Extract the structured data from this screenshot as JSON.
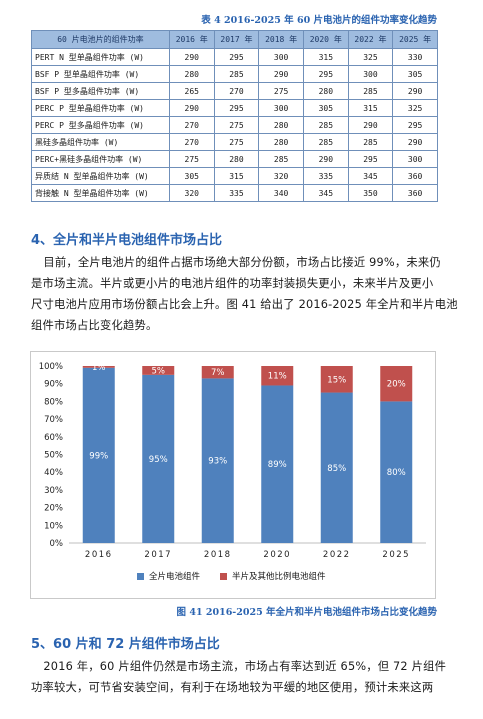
{
  "table": {
    "caption": "表 4 2016-2025 年 60 片电池片的组件功率变化趋势",
    "header": [
      "60 片电池片的组件功率",
      "2016 年",
      "2017 年",
      "2018 年",
      "2020 年",
      "2022 年",
      "2025 年"
    ],
    "rows": [
      [
        "PERT N 型单晶组件功率 (W)",
        "290",
        "295",
        "300",
        "315",
        "325",
        "330"
      ],
      [
        "BSF P 型单晶组件功率 (W)",
        "280",
        "285",
        "290",
        "295",
        "300",
        "305"
      ],
      [
        "BSF P 型多晶组件功率 (W)",
        "265",
        "270",
        "275",
        "280",
        "285",
        "290"
      ],
      [
        "PERC P 型单晶组件功率 (W)",
        "290",
        "295",
        "300",
        "305",
        "315",
        "325"
      ],
      [
        "PERC P 型多晶组件功率 (W)",
        "270",
        "275",
        "280",
        "285",
        "290",
        "295"
      ],
      [
        "黑硅多晶组件功率 (W)",
        "270",
        "275",
        "280",
        "285",
        "285",
        "290"
      ],
      [
        "PERC+黑硅多晶组件功率 (W)",
        "275",
        "280",
        "285",
        "290",
        "295",
        "300"
      ],
      [
        "异质结 N 型单晶组件功率 (W)",
        "305",
        "315",
        "320",
        "335",
        "345",
        "360"
      ],
      [
        "背接触 N 型单晶组件功率 (W)",
        "320",
        "335",
        "340",
        "345",
        "350",
        "360"
      ]
    ]
  },
  "section4": {
    "heading": "4、全片和半片电池组件市场占比",
    "lines": [
      "目前，全片电池片的组件占据市场绝大部分份额，市场占比接近 99%，未来仍",
      "是市场主流。半片或更小片的电池片组件的功率封装损失更小，未来半片及更小",
      "尺寸电池片应用市场份额占比会上升。图 41 给出了 2016-2025 年全片和半片电池",
      "组件市场占比变化趋势。"
    ]
  },
  "chart_data": {
    "type": "bar",
    "stacked": true,
    "categories": [
      "2016",
      "2017",
      "2018",
      "2020",
      "2022",
      "2025"
    ],
    "series": [
      {
        "name": "全片电池组件",
        "values": [
          99,
          95,
          93,
          89,
          85,
          80
        ],
        "labels": [
          "99%",
          "95%",
          "93%",
          "89%",
          "85%",
          "80%"
        ],
        "color": "#4f81bd"
      },
      {
        "name": "半片及其他比例电池组件",
        "values": [
          1,
          5,
          7,
          11,
          15,
          20
        ],
        "labels": [
          "1%",
          "5%",
          "7%",
          "11%",
          "15%",
          "20%"
        ],
        "color": "#c0504d"
      }
    ],
    "yticks": [
      "0%",
      "10%",
      "20%",
      "30%",
      "40%",
      "50%",
      "60%",
      "70%",
      "80%",
      "90%",
      "100%"
    ],
    "ylim": [
      0,
      100
    ],
    "legend_position": "bottom",
    "grid": false
  },
  "figure_caption": "图 41 2016-2025 年全片和半片电池组件市场占比变化趋势",
  "section5": {
    "heading": "5、60 片和 72 片组件市场占比",
    "lines": [
      "2016 年，60 片组件仍然是市场主流，市场占有率达到近 65%，但 72 片组件",
      "功率较大，可节省安装空间，有利于在场地较为平缓的地区使用，预计未来这两"
    ]
  }
}
